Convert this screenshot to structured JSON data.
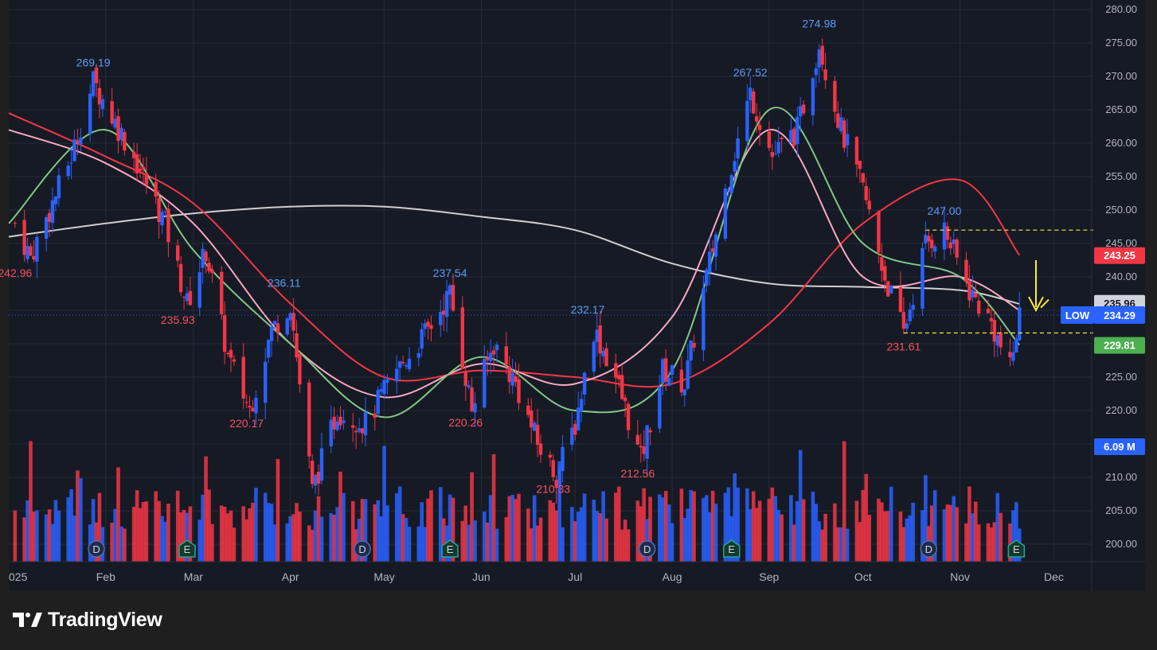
{
  "app": {
    "brand": "TradingView"
  },
  "colors": {
    "background": "#161a25",
    "outer": "#1f1f1f",
    "grid": "#262b38",
    "up": "#2962ff",
    "down": "#f23645",
    "ma_short": "#81c784",
    "ma_mid": "#f8a8c0",
    "ma_long": "#f23645",
    "ma_200": "#cfcfcf",
    "axis_text": "#b2b5be",
    "annotation_arrow": "#ffeb3b"
  },
  "price_axis": {
    "ticks": [
      "280.00",
      "275.00",
      "270.00",
      "265.00",
      "260.00",
      "255.00",
      "250.00",
      "245.00",
      "240.00",
      "235.00",
      "230.00",
      "225.00",
      "220.00",
      "215.00",
      "210.00",
      "205.00",
      "200.00"
    ]
  },
  "time_axis": {
    "labels": [
      "025",
      "Feb",
      "Mar",
      "Apr",
      "May",
      "Jun",
      "Jul",
      "Aug",
      "Sep",
      "Oct",
      "Nov",
      "Dec"
    ]
  },
  "badges": {
    "ma_long_value": "243.25",
    "ma_200_value": "235.96",
    "last_price_tag": "LOW",
    "last_price": "234.29",
    "ma_short_value": "229.81",
    "volume_value": "6.09 M"
  },
  "price_labels": [
    {
      "text": "269.19",
      "kind": "high"
    },
    {
      "text": "242.96",
      "kind": "low"
    },
    {
      "text": "235.93",
      "kind": "low"
    },
    {
      "text": "236.11",
      "kind": "high"
    },
    {
      "text": "220.17",
      "kind": "low"
    },
    {
      "text": "237.54",
      "kind": "high"
    },
    {
      "text": "220.26",
      "kind": "low"
    },
    {
      "text": "210.33",
      "kind": "low"
    },
    {
      "text": "232.17",
      "kind": "high"
    },
    {
      "text": "212.56",
      "kind": "low"
    },
    {
      "text": "267.52",
      "kind": "high"
    },
    {
      "text": "274.98",
      "kind": "high"
    },
    {
      "text": "247.00",
      "kind": "high"
    },
    {
      "text": "231.61",
      "kind": "low"
    }
  ],
  "events": [
    "D",
    "E",
    "D",
    "E",
    "D",
    "E",
    "D",
    "E"
  ],
  "chart_data": {
    "type": "candlestick",
    "title": "",
    "ylim": [
      197,
      281
    ],
    "x_range": [
      "2025-01-01",
      "2025-12-08"
    ],
    "x_tick_labels": [
      "025",
      "Feb",
      "Mar",
      "Apr",
      "May",
      "Jun",
      "Jul",
      "Aug",
      "Sep",
      "Oct",
      "Nov",
      "Dec"
    ],
    "key_points": [
      {
        "date": "2025-01-03",
        "close": 248
      },
      {
        "date": "2025-01-08",
        "close": 242.96
      },
      {
        "date": "2025-01-21",
        "close": 258
      },
      {
        "date": "2025-01-28",
        "close": 269.19
      },
      {
        "date": "2025-02-10",
        "close": 258
      },
      {
        "date": "2025-02-20",
        "close": 248
      },
      {
        "date": "2025-02-27",
        "close": 235.93
      },
      {
        "date": "2025-03-05",
        "close": 244
      },
      {
        "date": "2025-03-12",
        "close": 228
      },
      {
        "date": "2025-03-19",
        "close": 220.17
      },
      {
        "date": "2025-03-26",
        "close": 232
      },
      {
        "date": "2025-04-01",
        "close": 236.11
      },
      {
        "date": "2025-04-08",
        "close": 208
      },
      {
        "date": "2025-04-16",
        "close": 220
      },
      {
        "date": "2025-04-25",
        "close": 218
      },
      {
        "date": "2025-05-05",
        "close": 226
      },
      {
        "date": "2025-05-15",
        "close": 232
      },
      {
        "date": "2025-05-22",
        "close": 237.54
      },
      {
        "date": "2025-05-29",
        "close": 220.26
      },
      {
        "date": "2025-06-05",
        "close": 230
      },
      {
        "date": "2025-06-12",
        "close": 224
      },
      {
        "date": "2025-06-19",
        "close": 215
      },
      {
        "date": "2025-06-25",
        "close": 210.33
      },
      {
        "date": "2025-07-01",
        "close": 218
      },
      {
        "date": "2025-07-07",
        "close": 232.17
      },
      {
        "date": "2025-07-14",
        "close": 225
      },
      {
        "date": "2025-07-22",
        "close": 212.56
      },
      {
        "date": "2025-07-29",
        "close": 226
      },
      {
        "date": "2025-08-05",
        "close": 224
      },
      {
        "date": "2025-08-12",
        "close": 240
      },
      {
        "date": "2025-08-19",
        "close": 255
      },
      {
        "date": "2025-08-26",
        "close": 267.52
      },
      {
        "date": "2025-09-02",
        "close": 258
      },
      {
        "date": "2025-09-10",
        "close": 262
      },
      {
        "date": "2025-09-17",
        "close": 274.98
      },
      {
        "date": "2025-09-24",
        "close": 262
      },
      {
        "date": "2025-10-01",
        "close": 253
      },
      {
        "date": "2025-10-08",
        "close": 240
      },
      {
        "date": "2025-10-14",
        "close": 231.61
      },
      {
        "date": "2025-10-21",
        "close": 245
      },
      {
        "date": "2025-10-27",
        "close": 247
      },
      {
        "date": "2025-11-04",
        "close": 238
      },
      {
        "date": "2025-11-11",
        "close": 233
      },
      {
        "date": "2025-11-17",
        "close": 226
      },
      {
        "date": "2025-11-20",
        "close": 234.29
      }
    ],
    "series": [
      {
        "values_at": [
          "2025-01-01",
          "2025-02-01",
          "2025-03-01",
          "2025-04-01",
          "2025-05-01",
          "2025-06-01",
          "2025-07-01",
          "2025-08-01",
          "2025-09-01",
          "2025-10-01",
          "2025-11-01",
          "2025-11-20"
        ],
        "values": [
          262,
          257,
          248,
          230,
          222,
          227,
          224,
          234,
          262,
          240,
          240,
          235
        ]
      },
      {
        "values_at": [
          "2025-01-01",
          "2025-02-01",
          "2025-03-01",
          "2025-04-01",
          "2025-05-01",
          "2025-06-01",
          "2025-07-01",
          "2025-08-01",
          "2025-09-01",
          "2025-10-01",
          "2025-11-01",
          "2025-11-20"
        ],
        "values": [
          264.5,
          258,
          251,
          236,
          225,
          226,
          225,
          224,
          233,
          248,
          254.5,
          243.25
        ]
      },
      {
        "values_at": [
          "2025-01-01",
          "2025-02-01",
          "2025-03-01",
          "2025-04-01",
          "2025-05-01",
          "2025-06-01",
          "2025-07-01",
          "2025-08-01",
          "2025-09-01",
          "2025-10-01",
          "2025-11-01",
          "2025-11-20"
        ],
        "values": [
          246,
          248,
          249.5,
          250.5,
          250.5,
          249,
          247,
          242,
          239,
          238.5,
          238,
          235.96
        ]
      },
      {
        "values_at": [
          "2025-01-01",
          "2025-02-01",
          "2025-03-01",
          "2025-04-01",
          "2025-05-01",
          "2025-06-01",
          "2025-07-01",
          "2025-08-01",
          "2025-09-01",
          "2025-10-01",
          "2025-11-01",
          "2025-11-20"
        ],
        "values": [
          248,
          262,
          244,
          230,
          219,
          228,
          220,
          226,
          265,
          245,
          240,
          229.81
        ]
      }
    ],
    "volume": {
      "last": "6.09 M"
    },
    "horizontal_levels": [
      247.0,
      231.61
    ]
  }
}
